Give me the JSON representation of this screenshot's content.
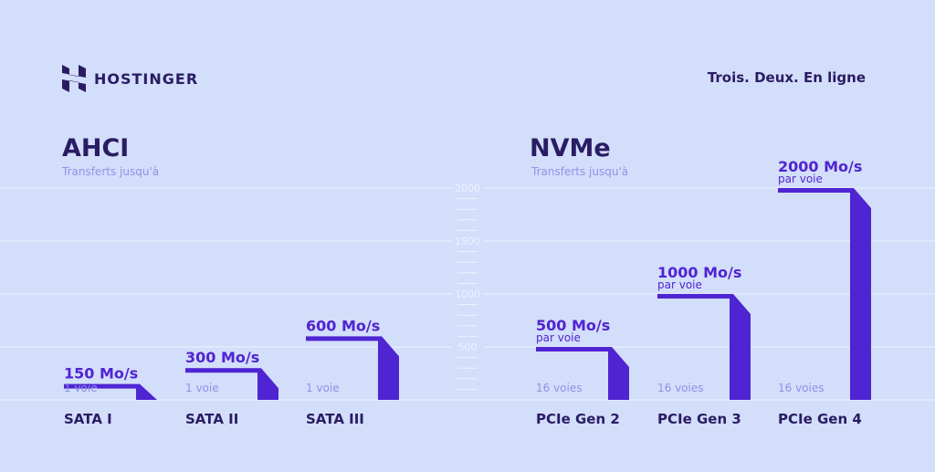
{
  "header": {
    "brand": "HOSTINGER",
    "tagline": "Trois. Deux. En ligne"
  },
  "groups": [
    {
      "title": "AHCI",
      "subtitle": "Transferts jusqu'à"
    },
    {
      "title": "NVMe",
      "subtitle": "Transferts jusqu'à"
    }
  ],
  "colors": {
    "background": "#d3defb",
    "bar": "#4f24d2",
    "text": "#2a1c63",
    "muted": "#8f93e6",
    "grid": "#eef2ff"
  },
  "chart_data": {
    "type": "bar",
    "unit": "Mo/s",
    "ylim": [
      0,
      2000
    ],
    "yticks": [
      "2000",
      "1500",
      "1000",
      "500"
    ],
    "grid": true,
    "categories": [
      "SATA I",
      "SATA II",
      "SATA III",
      "PCIe Gen 2",
      "PCIe Gen 3",
      "PCIe Gen 4"
    ],
    "values": [
      150,
      300,
      600,
      500,
      1000,
      2000
    ],
    "value_labels": [
      "150 Mo/s",
      "300 Mo/s",
      "600 Mo/s",
      "500 Mo/s",
      "1000 Mo/s",
      "2000 Mo/s"
    ],
    "value_notes": [
      "",
      "",
      "",
      "par voie",
      "par voie",
      "par voie"
    ],
    "lanes": [
      "1 voie",
      "1 voie",
      "1 voie",
      "16 voies",
      "16 voies",
      "16 voies"
    ]
  }
}
